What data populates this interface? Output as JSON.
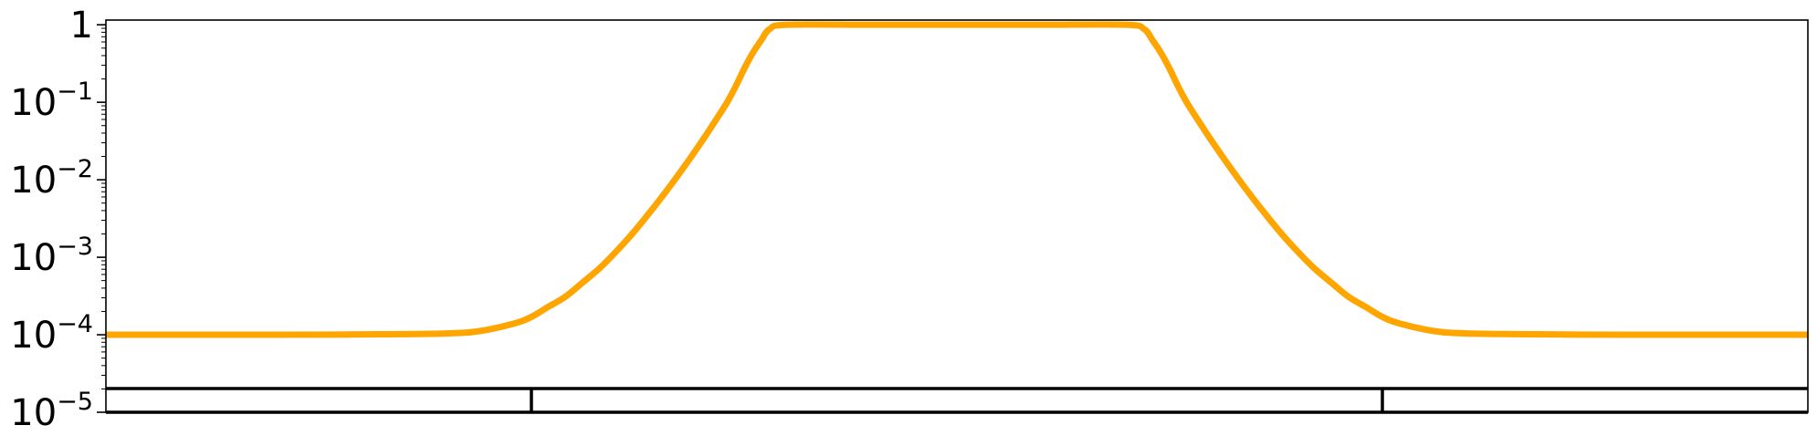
{
  "chart_data": {
    "type": "line",
    "title": "",
    "xlabel": "",
    "ylabel": "",
    "y_scale": "log",
    "ylim": [
      1e-05,
      1.15
    ],
    "xlim": [
      0,
      100
    ],
    "grid": false,
    "x_ticks_visible": false,
    "y_ticks": [
      {
        "value": 1,
        "base": "1",
        "exp": ""
      },
      {
        "value": 0.1,
        "base": "10",
        "exp": "−1"
      },
      {
        "value": 0.01,
        "base": "10",
        "exp": "−2"
      },
      {
        "value": 0.001,
        "base": "10",
        "exp": "−3"
      },
      {
        "value": 0.0001,
        "base": "10",
        "exp": "−4"
      },
      {
        "value": 1e-05,
        "base": "10",
        "exp": "−5"
      }
    ],
    "series": [
      {
        "color": "#FFA500",
        "x": [
          0,
          10,
          15,
          20,
          22,
          24,
          25,
          26,
          27,
          28,
          29,
          30,
          31,
          32,
          33,
          34,
          35,
          36,
          36.5,
          37,
          37.5,
          38,
          38.5,
          39,
          40,
          45,
          50,
          55,
          60,
          61,
          61.5,
          62,
          62.5,
          63,
          63.5,
          64,
          65,
          66,
          67,
          68,
          69,
          70,
          71,
          72,
          73,
          74,
          75,
          76,
          78,
          80,
          85,
          90,
          100
        ],
        "y": [
          0.0001,
          0.0001,
          0.000101,
          0.000104,
          0.000112,
          0.00014,
          0.00017,
          0.00023,
          0.00031,
          0.00047,
          0.00072,
          0.0012,
          0.0021,
          0.0039,
          0.0075,
          0.015,
          0.031,
          0.067,
          0.1,
          0.16,
          0.27,
          0.43,
          0.63,
          0.88,
          1,
          1,
          1,
          1,
          1,
          0.88,
          0.63,
          0.43,
          0.27,
          0.16,
          0.1,
          0.067,
          0.031,
          0.015,
          0.0075,
          0.0039,
          0.0021,
          0.0012,
          0.00072,
          0.00047,
          0.00031,
          0.00023,
          0.00017,
          0.00014,
          0.000112,
          0.000104,
          0.000101,
          0.0001,
          0.0001
        ]
      }
    ],
    "segments_bar": {
      "color": "#000000",
      "dividers_x": [
        25,
        75
      ]
    }
  }
}
